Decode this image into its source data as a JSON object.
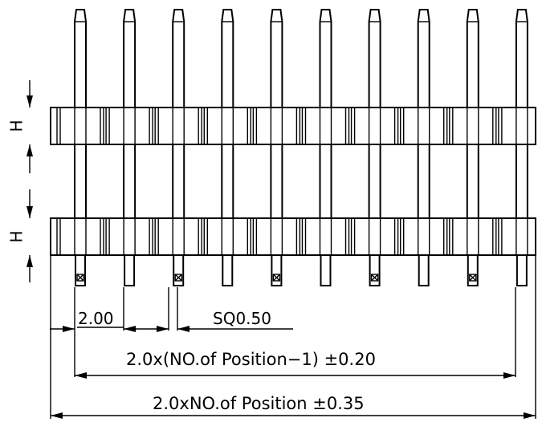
{
  "drawing": {
    "pin_count": 10,
    "dim_pitch": "2.00",
    "dim_square": "SQ0.50",
    "dim_span_inner": "2.0x(NO.of Position−1) ±0.20",
    "dim_span_outer": "2.0xNO.of Position ±0.35",
    "dim_height_upper": "H",
    "dim_height_lower": "H",
    "line_color": "#000000",
    "background": "#ffffff"
  }
}
